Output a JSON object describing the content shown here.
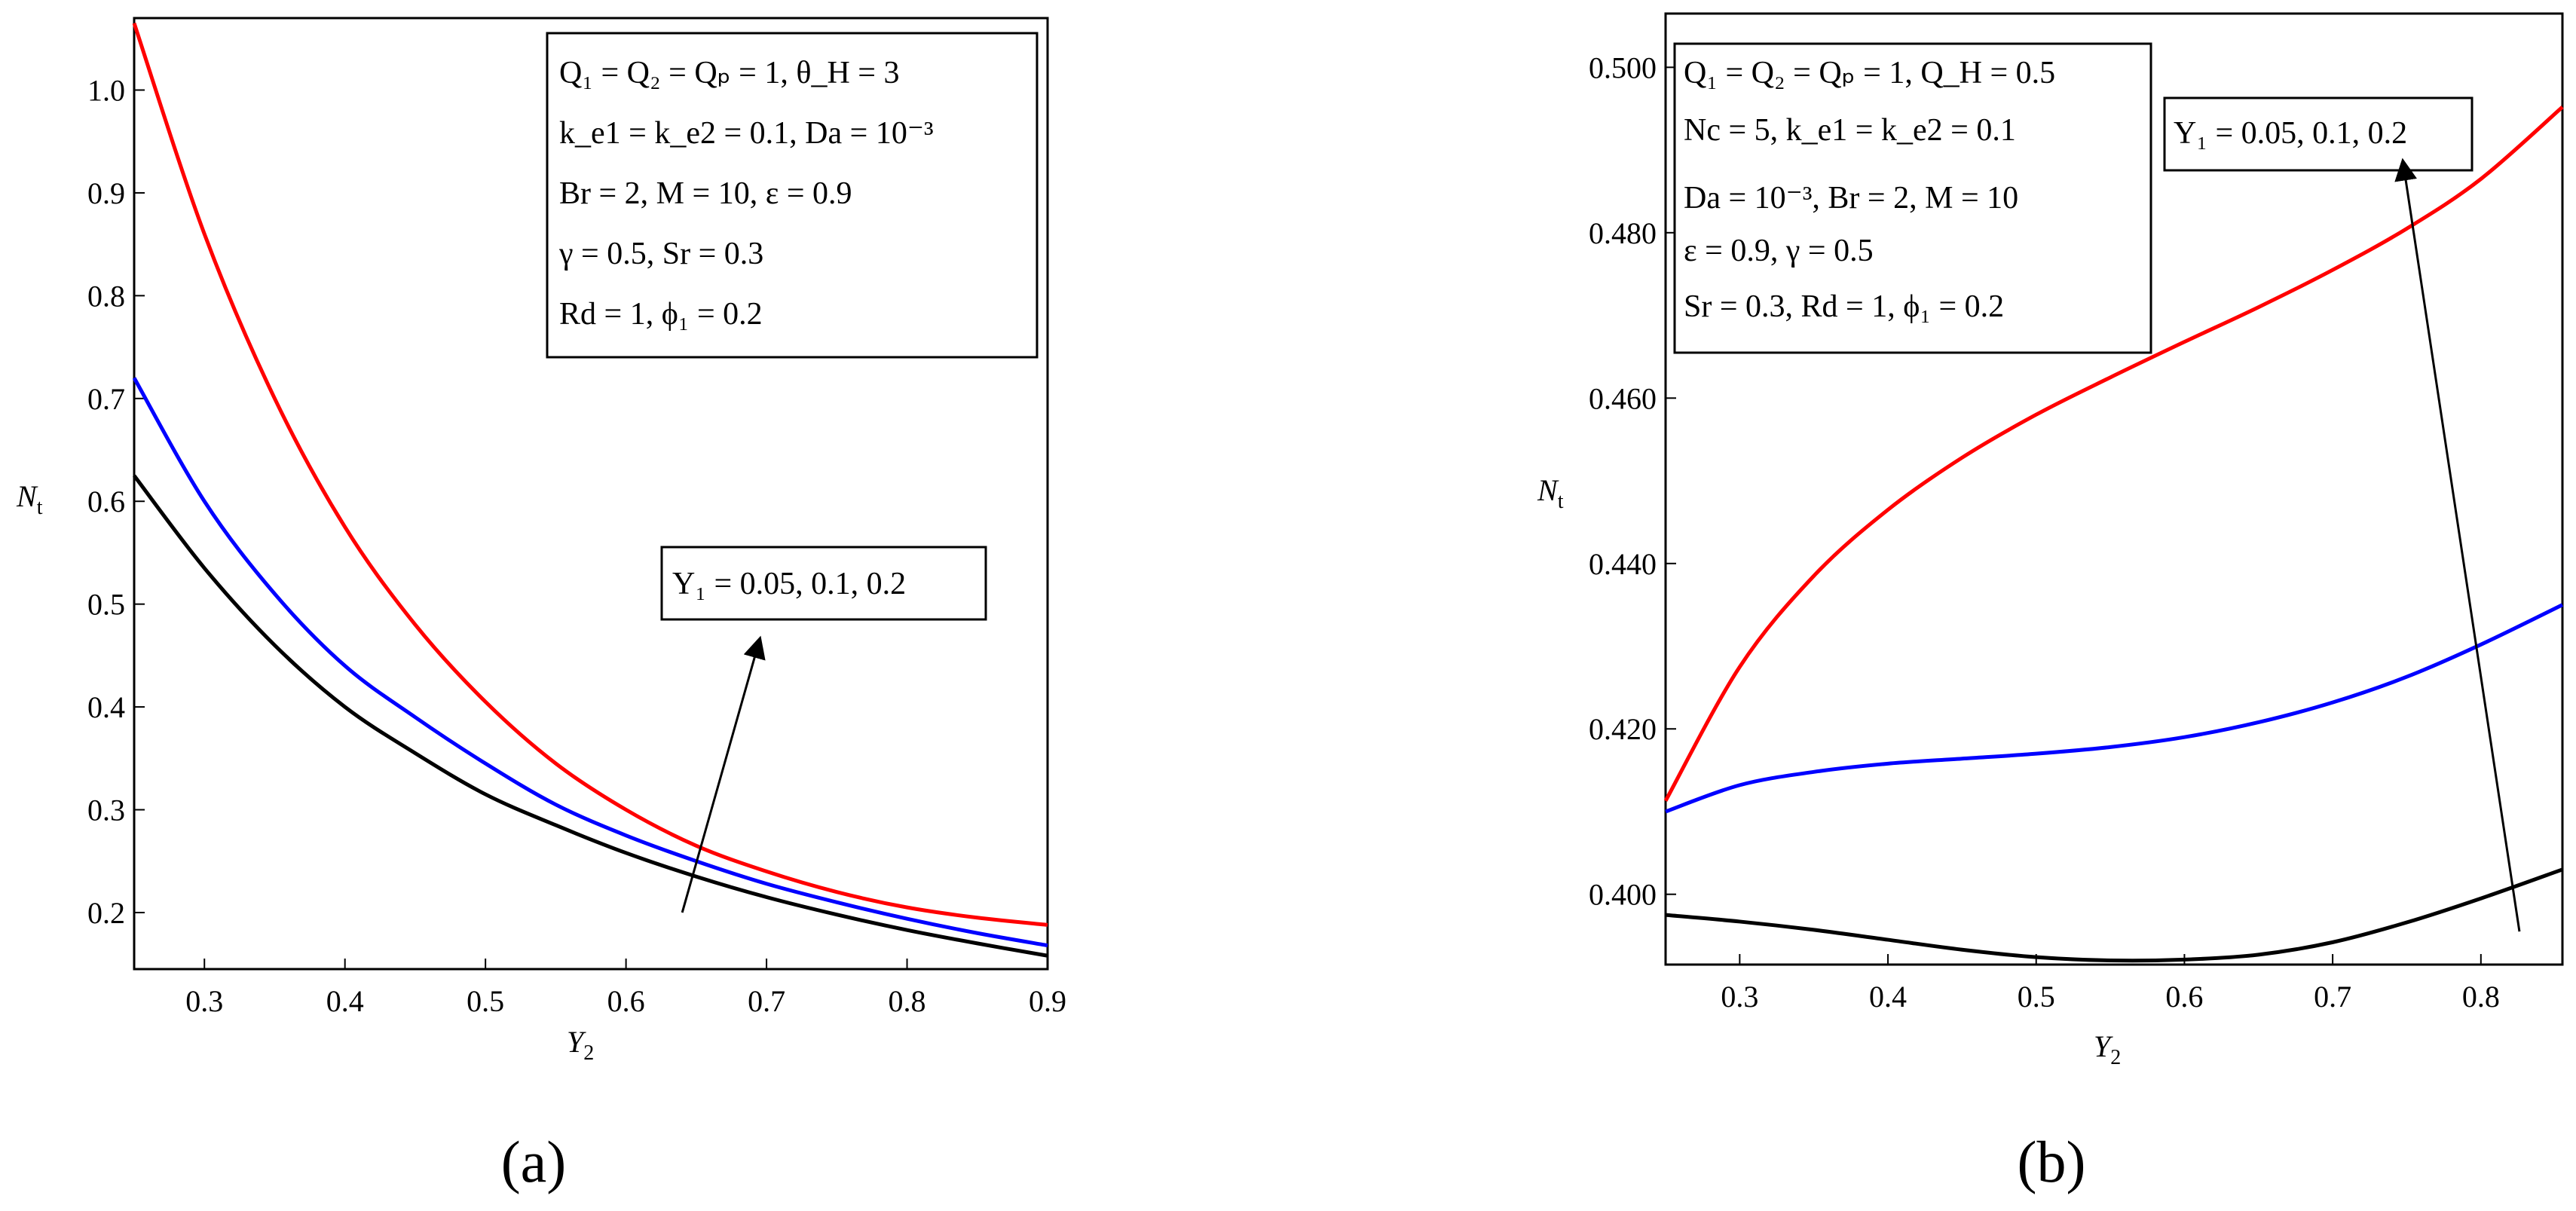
{
  "chart_data": [
    {
      "type": "line",
      "panel_label": "(a)",
      "xlabel": "Y",
      "xlabel_sub": "2",
      "ylabel": "N",
      "ylabel_sub": "t",
      "xlim": [
        0.25,
        0.9
      ],
      "ylim": [
        0.145,
        1.07
      ],
      "xticks": [
        "0.3",
        "0.4",
        "0.5",
        "0.6",
        "0.7",
        "0.8",
        "0.9"
      ],
      "yticks": [
        "0.2",
        "0.3",
        "0.4",
        "0.5",
        "0.6",
        "0.7",
        "0.8",
        "0.9",
        "1.0"
      ],
      "grid": false,
      "parameter_box": [
        "Q₁ = Q₂ = Qₚ = 1, θ_H = 3",
        "k_e1 = k_e2 = 0.1, Da = 10⁻³",
        "Br = 2, M = 10, ε = 0.9",
        "γ = 0.5, Sr = 0.3",
        "Rd = 1, ϕ₁ = 0.2"
      ],
      "annotation": "Y₁ = 0.05, 0.1, 0.2",
      "series": [
        {
          "color": "#ff0000",
          "x": [
            0.25,
            0.3,
            0.35,
            0.4,
            0.45,
            0.5,
            0.55,
            0.6,
            0.65,
            0.7,
            0.75,
            0.8,
            0.85,
            0.9
          ],
          "y": [
            1.065,
            0.86,
            0.7,
            0.575,
            0.48,
            0.405,
            0.345,
            0.3,
            0.265,
            0.24,
            0.22,
            0.205,
            0.195,
            0.188
          ]
        },
        {
          "color": "#0000ff",
          "x": [
            0.25,
            0.3,
            0.35,
            0.4,
            0.45,
            0.5,
            0.55,
            0.6,
            0.65,
            0.7,
            0.75,
            0.8,
            0.85,
            0.9
          ],
          "y": [
            0.72,
            0.6,
            0.51,
            0.44,
            0.39,
            0.345,
            0.305,
            0.275,
            0.25,
            0.228,
            0.21,
            0.194,
            0.18,
            0.168
          ]
        },
        {
          "color": "#000000",
          "x": [
            0.25,
            0.3,
            0.35,
            0.4,
            0.45,
            0.5,
            0.55,
            0.6,
            0.65,
            0.7,
            0.75,
            0.8,
            0.85,
            0.9
          ],
          "y": [
            0.625,
            0.535,
            0.46,
            0.4,
            0.355,
            0.315,
            0.285,
            0.258,
            0.235,
            0.215,
            0.198,
            0.183,
            0.17,
            0.158
          ]
        }
      ],
      "arrow": {
        "from": [
          0.64,
          0.2
        ],
        "to": [
          0.695,
          0.465
        ]
      }
    },
    {
      "type": "line",
      "panel_label": "(b)",
      "xlabel": "Y",
      "xlabel_sub": "2",
      "ylabel": "N",
      "ylabel_sub": "t",
      "xlim": [
        0.25,
        0.855
      ],
      "ylim": [
        0.3915,
        0.5065
      ],
      "xticks": [
        "0.3",
        "0.4",
        "0.5",
        "0.6",
        "0.7",
        "0.8"
      ],
      "yticks": [
        "0.400",
        "0.420",
        "0.440",
        "0.460",
        "0.480",
        "0.500"
      ],
      "grid": false,
      "parameter_box": [
        "Q₁ = Q₂ = Qₚ = 1, Q_H = 0.5",
        "Nc = 5, k_e1 = k_e2 = 0.1",
        "Da = 10⁻³, Br = 2, M = 10",
        "ε = 0.9, γ = 0.5",
        "Sr = 0.3, Rd = 1, ϕ₁ = 0.2"
      ],
      "annotation": "Y₁ = 0.05, 0.1, 0.2",
      "series": [
        {
          "color": "#ff0000",
          "x": [
            0.25,
            0.3,
            0.35,
            0.4,
            0.45,
            0.5,
            0.55,
            0.6,
            0.65,
            0.7,
            0.75,
            0.8,
            0.855
          ],
          "y": [
            0.4113,
            0.4275,
            0.4385,
            0.4465,
            0.4528,
            0.458,
            0.4625,
            0.4668,
            0.471,
            0.4755,
            0.4805,
            0.4865,
            0.4952
          ]
        },
        {
          "color": "#0000ff",
          "x": [
            0.25,
            0.3,
            0.35,
            0.4,
            0.45,
            0.5,
            0.55,
            0.6,
            0.65,
            0.7,
            0.75,
            0.8,
            0.855
          ],
          "y": [
            0.41,
            0.4132,
            0.4148,
            0.4158,
            0.4164,
            0.417,
            0.4178,
            0.419,
            0.4208,
            0.4232,
            0.4263,
            0.4302,
            0.435
          ]
        },
        {
          "color": "#000000",
          "x": [
            0.25,
            0.3,
            0.35,
            0.4,
            0.45,
            0.5,
            0.55,
            0.6,
            0.65,
            0.7,
            0.75,
            0.8,
            0.855
          ],
          "y": [
            0.3975,
            0.3967,
            0.3957,
            0.3945,
            0.3933,
            0.3924,
            0.392,
            0.3921,
            0.3927,
            0.3942,
            0.3966,
            0.3995,
            0.403
          ]
        }
      ],
      "arrow": {
        "from": [
          0.826,
          0.3955
        ],
        "to": [
          0.7475,
          0.4885
        ]
      }
    }
  ]
}
